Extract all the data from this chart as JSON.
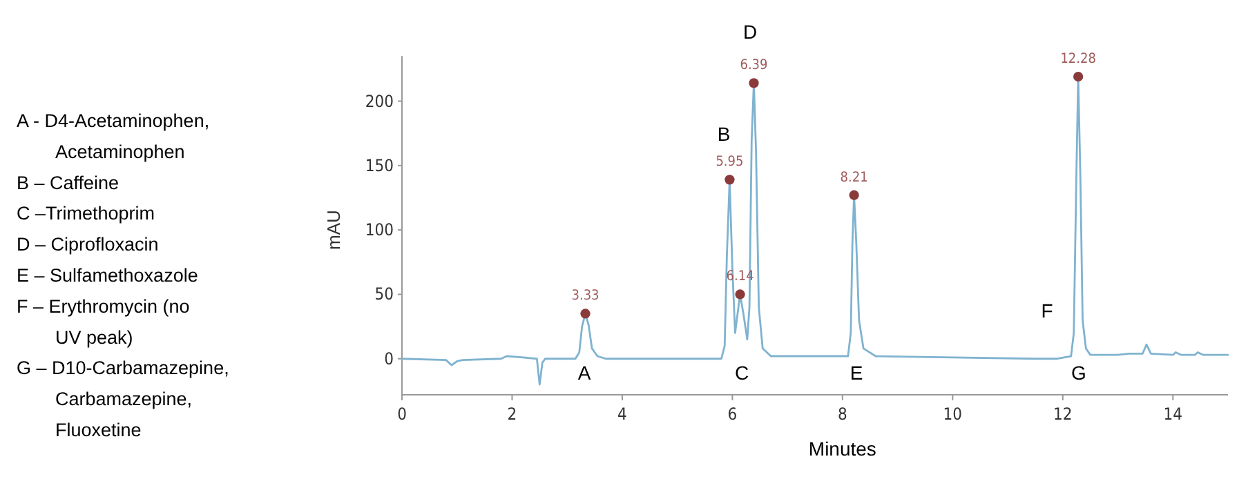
{
  "chart_data": {
    "type": "line",
    "xlabel": "Minutes",
    "ylabel": "mAU",
    "xlim": [
      0,
      15
    ],
    "ylim": [
      -28,
      235
    ],
    "xticks": [
      0,
      2,
      4,
      6,
      8,
      10,
      12,
      14
    ],
    "yticks": [
      0,
      50,
      100,
      150,
      200
    ],
    "grid": false,
    "series": [
      {
        "color": "#7fb3d0",
        "line_style": "solid",
        "marker": "none",
        "x": [
          0,
          0.8,
          0.9,
          1.0,
          1.1,
          1.8,
          1.9,
          2.2,
          2.45,
          2.5,
          2.55,
          2.6,
          3.15,
          3.22,
          3.27,
          3.33,
          3.39,
          3.45,
          3.55,
          3.7,
          5.8,
          5.86,
          5.9,
          5.95,
          6.0,
          6.05,
          6.08,
          6.14,
          6.2,
          6.27,
          6.31,
          6.35,
          6.39,
          6.43,
          6.48,
          6.55,
          6.7,
          7.0,
          8.1,
          8.15,
          8.18,
          8.21,
          8.25,
          8.3,
          8.38,
          8.6,
          10,
          11.5,
          11.9,
          12.15,
          12.2,
          12.25,
          12.28,
          12.32,
          12.36,
          12.42,
          12.5,
          13.0,
          13.2,
          13.45,
          13.52,
          13.6,
          14.0,
          14.05,
          14.15,
          14.4,
          14.45,
          14.55,
          15.0
        ],
        "values": [
          0,
          -1,
          -5,
          -2,
          -1,
          0,
          2,
          1,
          0,
          -20,
          -3,
          0,
          0,
          5,
          25,
          35,
          26,
          8,
          2,
          0,
          0,
          10,
          80,
          139,
          70,
          20,
          30,
          50,
          35,
          15,
          40,
          170,
          214,
          160,
          40,
          8,
          2,
          2,
          2,
          20,
          90,
          127,
          90,
          30,
          8,
          2,
          1,
          0,
          0,
          2,
          20,
          150,
          219,
          140,
          30,
          8,
          3,
          3,
          4,
          4,
          11,
          4,
          3,
          5,
          3,
          3,
          5,
          3,
          3
        ]
      },
      {
        "type": "scatter",
        "color": "#8b3a3a",
        "marker": "circle",
        "x": [
          3.33,
          5.95,
          6.14,
          6.39,
          8.21,
          12.28
        ],
        "values": [
          35,
          139,
          50,
          214,
          127,
          219
        ]
      }
    ],
    "annotations": [
      {
        "text": "3.33",
        "x": 3.33,
        "y": 35
      },
      {
        "text": "5.95",
        "x": 5.95,
        "y": 139
      },
      {
        "text": "6.14",
        "x": 6.14,
        "y": 50
      },
      {
        "text": "6.39",
        "x": 6.39,
        "y": 214
      },
      {
        "text": "8.21",
        "x": 8.21,
        "y": 127
      },
      {
        "text": "12.28",
        "x": 12.28,
        "y": 219
      },
      "A",
      "B",
      "C",
      "D",
      "E",
      "F",
      "G",
      "A  - D4-Acetaminophen, Acetaminophen",
      "B – Caffeine",
      "C –Trimethoprim",
      "D – Ciprofloxacin",
      "E – Sulfamethoxazole",
      "F – Erythromycin (no UV peak)",
      "G – D10-Carbamazepine, Carbamazepine, Fluoxetine"
    ]
  }
}
